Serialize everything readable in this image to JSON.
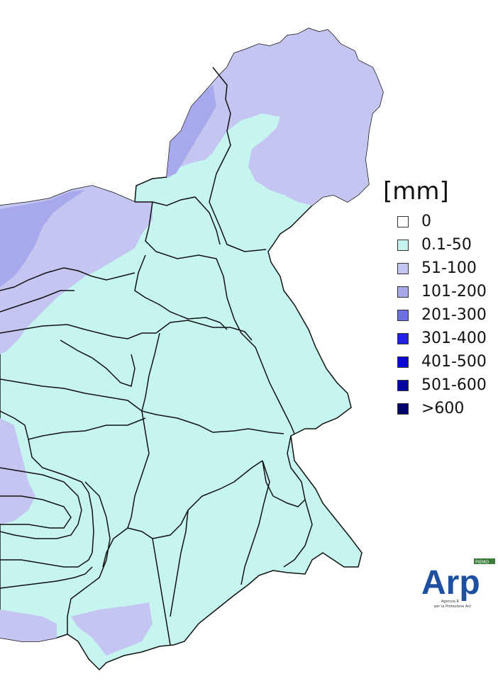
{
  "legend": {
    "title": "[mm]",
    "items": [
      {
        "label": "0",
        "color": "#ffffff"
      },
      {
        "label": "0.1-50",
        "color": "#c6f5f0"
      },
      {
        "label": "51-100",
        "color": "#c5c5f2"
      },
      {
        "label": "101-200",
        "color": "#a8a8ec"
      },
      {
        "label": "201-300",
        "color": "#6e6ee6"
      },
      {
        "label": "301-400",
        "color": "#2323e6"
      },
      {
        "label": "401-500",
        "color": "#0a0ad4"
      },
      {
        "label": "501-600",
        "color": "#0000a0"
      },
      {
        "label": ">600",
        "color": "#00006e"
      }
    ]
  },
  "logo": {
    "text": "Arp",
    "subtitle_line1": "Agenzia R",
    "subtitle_line2": "per la Protezione Am",
    "badge": "PIEMO"
  },
  "colors": {
    "region_fill": "#c6f5f0",
    "zone_51_100": "#c5c5f2",
    "zone_101_200": "#a8a8ec",
    "border": "#111111"
  }
}
